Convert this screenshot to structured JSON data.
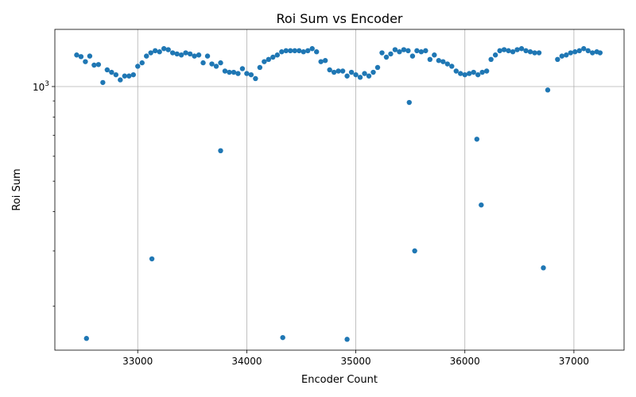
{
  "chart_data": {
    "type": "scatter",
    "title": "Roi Sum vs Encoder",
    "xlabel": "Encoder Count",
    "ylabel": "Roi Sum",
    "xlim": [
      32240,
      37460
    ],
    "ylim": [
      145,
      1520
    ],
    "y_scale": "log",
    "x_ticks": [
      33000,
      34000,
      35000,
      36000,
      37000
    ],
    "y_major_ticks": [
      {
        "value": 1000,
        "base": "10",
        "exp": "3"
      }
    ],
    "y_minor_ticks": [
      200,
      300,
      400,
      500,
      600,
      700,
      800,
      900
    ],
    "grid": true,
    "marker_color": "#1f77b4",
    "points": [
      [
        32440,
        1260
      ],
      [
        32480,
        1245
      ],
      [
        32520,
        1200
      ],
      [
        32560,
        1250
      ],
      [
        32600,
        1170
      ],
      [
        32640,
        1175
      ],
      [
        32680,
        1030
      ],
      [
        32720,
        1130
      ],
      [
        32760,
        1110
      ],
      [
        32800,
        1090
      ],
      [
        32840,
        1050
      ],
      [
        32880,
        1080
      ],
      [
        32920,
        1080
      ],
      [
        32960,
        1090
      ],
      [
        33000,
        1160
      ],
      [
        33040,
        1190
      ],
      [
        33080,
        1250
      ],
      [
        33120,
        1280
      ],
      [
        33160,
        1300
      ],
      [
        33200,
        1290
      ],
      [
        33240,
        1320
      ],
      [
        33280,
        1310
      ],
      [
        33320,
        1280
      ],
      [
        33360,
        1270
      ],
      [
        33400,
        1260
      ],
      [
        33440,
        1280
      ],
      [
        33480,
        1270
      ],
      [
        33520,
        1250
      ],
      [
        33560,
        1260
      ],
      [
        33600,
        1190
      ],
      [
        33640,
        1250
      ],
      [
        33680,
        1180
      ],
      [
        33720,
        1160
      ],
      [
        33760,
        1190
      ],
      [
        33800,
        1120
      ],
      [
        33840,
        1110
      ],
      [
        33880,
        1110
      ],
      [
        33920,
        1100
      ],
      [
        33960,
        1140
      ],
      [
        34000,
        1100
      ],
      [
        34040,
        1090
      ],
      [
        34080,
        1060
      ],
      [
        34120,
        1150
      ],
      [
        34160,
        1200
      ],
      [
        34200,
        1220
      ],
      [
        34240,
        1240
      ],
      [
        34280,
        1260
      ],
      [
        34320,
        1290
      ],
      [
        34360,
        1300
      ],
      [
        34400,
        1300
      ],
      [
        34440,
        1300
      ],
      [
        34480,
        1300
      ],
      [
        34520,
        1290
      ],
      [
        34560,
        1300
      ],
      [
        34600,
        1320
      ],
      [
        34640,
        1290
      ],
      [
        34680,
        1200
      ],
      [
        34720,
        1210
      ],
      [
        34760,
        1130
      ],
      [
        34800,
        1110
      ],
      [
        34840,
        1120
      ],
      [
        34880,
        1120
      ],
      [
        34920,
        1080
      ],
      [
        34960,
        1110
      ],
      [
        35000,
        1090
      ],
      [
        35040,
        1070
      ],
      [
        35080,
        1100
      ],
      [
        35120,
        1080
      ],
      [
        35160,
        1110
      ],
      [
        35200,
        1150
      ],
      [
        35240,
        1280
      ],
      [
        35280,
        1240
      ],
      [
        35320,
        1270
      ],
      [
        35360,
        1310
      ],
      [
        35400,
        1290
      ],
      [
        35440,
        1310
      ],
      [
        35480,
        1300
      ],
      [
        35520,
        1250
      ],
      [
        35560,
        1300
      ],
      [
        35600,
        1290
      ],
      [
        35640,
        1300
      ],
      [
        35680,
        1220
      ],
      [
        35720,
        1260
      ],
      [
        35760,
        1210
      ],
      [
        35800,
        1200
      ],
      [
        35840,
        1180
      ],
      [
        35880,
        1160
      ],
      [
        35920,
        1120
      ],
      [
        35960,
        1100
      ],
      [
        36000,
        1090
      ],
      [
        36040,
        1100
      ],
      [
        36080,
        1110
      ],
      [
        36120,
        1090
      ],
      [
        36160,
        1110
      ],
      [
        36200,
        1120
      ],
      [
        36240,
        1220
      ],
      [
        36280,
        1260
      ],
      [
        36320,
        1300
      ],
      [
        36360,
        1310
      ],
      [
        36400,
        1300
      ],
      [
        36440,
        1290
      ],
      [
        36480,
        1310
      ],
      [
        36520,
        1320
      ],
      [
        36560,
        1300
      ],
      [
        36600,
        1290
      ],
      [
        36640,
        1280
      ],
      [
        36680,
        1280
      ],
      [
        36850,
        1220
      ],
      [
        36890,
        1250
      ],
      [
        36930,
        1260
      ],
      [
        36970,
        1280
      ],
      [
        37010,
        1290
      ],
      [
        37050,
        1300
      ],
      [
        37090,
        1320
      ],
      [
        37130,
        1300
      ],
      [
        37170,
        1280
      ],
      [
        37210,
        1290
      ],
      [
        37240,
        1280
      ],
      [
        32530,
        158
      ],
      [
        33130,
        283
      ],
      [
        33760,
        625
      ],
      [
        34330,
        159
      ],
      [
        34920,
        157
      ],
      [
        35490,
        890
      ],
      [
        35540,
        300
      ],
      [
        36110,
        680
      ],
      [
        36150,
        420
      ],
      [
        36720,
        265
      ],
      [
        36760,
        975
      ]
    ]
  }
}
